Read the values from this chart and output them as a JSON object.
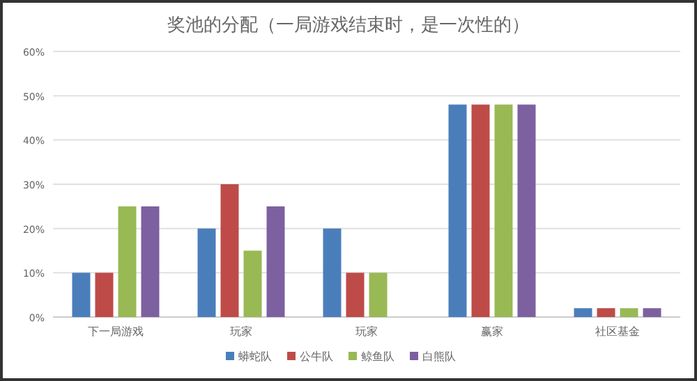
{
  "chart_data": {
    "type": "bar",
    "title": "奖池的分配（一局游戏结束时，是一次性的）",
    "categories": [
      "下一局游戏",
      "玩家",
      "玩家",
      "赢家",
      "社区基金"
    ],
    "series": [
      {
        "name": "蟒蛇队",
        "color": "#4a7ebb",
        "values": [
          10,
          20,
          20,
          48,
          2
        ]
      },
      {
        "name": "公牛队",
        "color": "#be4b48",
        "values": [
          10,
          30,
          10,
          48,
          2
        ]
      },
      {
        "name": "鲸鱼队",
        "color": "#98b954",
        "values": [
          25,
          15,
          10,
          48,
          2
        ]
      },
      {
        "name": "白熊队",
        "color": "#7d60a0",
        "values": [
          25,
          25,
          0,
          48,
          2
        ]
      }
    ],
    "ylim": [
      0,
      60
    ],
    "yticks": [
      {
        "value": 0,
        "label": "0%"
      },
      {
        "value": 10,
        "label": "10%"
      },
      {
        "value": 20,
        "label": "20%"
      },
      {
        "value": 30,
        "label": "30%"
      },
      {
        "value": 40,
        "label": "40%"
      },
      {
        "value": 50,
        "label": "50%"
      },
      {
        "value": 60,
        "label": "60%"
      }
    ],
    "grid": "y",
    "legend": "bottom"
  }
}
